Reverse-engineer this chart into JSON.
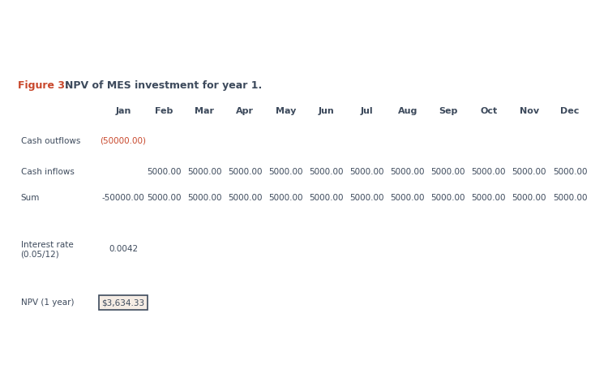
{
  "title_prefix": "Figure 3: ",
  "title_text": "NPV of MES investment for year 1.",
  "title_prefix_color": "#c8472b",
  "title_text_color": "#3d4a5c",
  "outer_bg": "#ffffff",
  "table_bg": "#f5ece4",
  "months": [
    "Jan",
    "Feb",
    "Mar",
    "Apr",
    "May",
    "Jun",
    "Jul",
    "Aug",
    "Sep",
    "Oct",
    "Nov",
    "Dec"
  ],
  "cash_outflows": [
    "(50000.00)",
    "",
    "",
    "",
    "",
    "",
    "",
    "",
    "",
    "",
    "",
    ""
  ],
  "cash_outflows_color": "#c8472b",
  "cash_inflows": [
    "",
    "5000.00",
    "5000.00",
    "5000.00",
    "5000.00",
    "5000.00",
    "5000.00",
    "5000.00",
    "5000.00",
    "5000.00",
    "5000.00",
    "5000.00"
  ],
  "sum_row": [
    "-50000.00",
    "5000.00",
    "5000.00",
    "5000.00",
    "5000.00",
    "5000.00",
    "5000.00",
    "5000.00",
    "5000.00",
    "5000.00",
    "5000.00",
    "5000.00"
  ],
  "interest_rate_label": "Interest rate\n(0.05/12)",
  "interest_rate_value": "0.0042",
  "npv_label": "NPV (1 year)",
  "npv_value": "$3,634.33",
  "data_color": "#3d4a5c",
  "font_size": 7.5,
  "header_font_size": 8.0,
  "title_font_size": 9.0
}
